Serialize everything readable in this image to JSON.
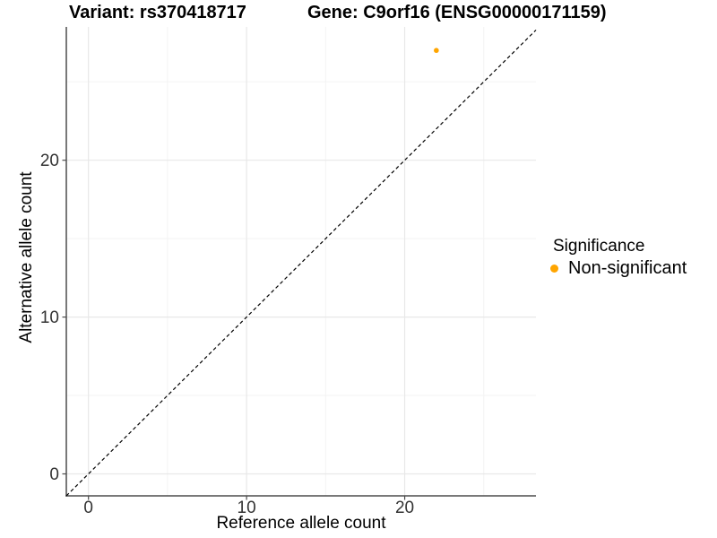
{
  "title": {
    "variant": "Variant: rs370418717",
    "gene": "Gene: C9orf16 (ENSG00000171159)"
  },
  "axes": {
    "x_label": "Reference allele count",
    "y_label": "Alternative allele count"
  },
  "legend": {
    "title": "Significance",
    "items": [
      {
        "label": "Non-significant",
        "color": "#FFA500"
      }
    ]
  },
  "colors": {
    "point": "#FFA500",
    "major_grid": "#e8e8e8",
    "minor_grid": "#f3f3f3",
    "axis_line": "#4d4d4d",
    "tick_label": "#333333",
    "reference_line": "#000000"
  },
  "chart_data": {
    "type": "scatter",
    "title": "Variant: rs370418717 | Gene: C9orf16 (ENSG00000171159)",
    "xlabel": "Reference allele count",
    "ylabel": "Alternative allele count",
    "points": [
      {
        "x": 22,
        "y": 27,
        "series": "Non-significant",
        "color": "#FFA500"
      }
    ],
    "x_ticks": [
      0,
      10,
      20
    ],
    "y_ticks": [
      0,
      10,
      20
    ],
    "x_minor_ticks": [
      5,
      15,
      25
    ],
    "y_minor_ticks": [
      5,
      15,
      25
    ],
    "xlim": [
      -1.4,
      28.3
    ],
    "ylim": [
      -1.4,
      28.5
    ],
    "reference_line": {
      "type": "identity",
      "style": "dashed",
      "from": [
        -1.4,
        -1.4
      ],
      "to": [
        28.3,
        28.3
      ]
    },
    "grid": true,
    "legend_position": "right"
  }
}
